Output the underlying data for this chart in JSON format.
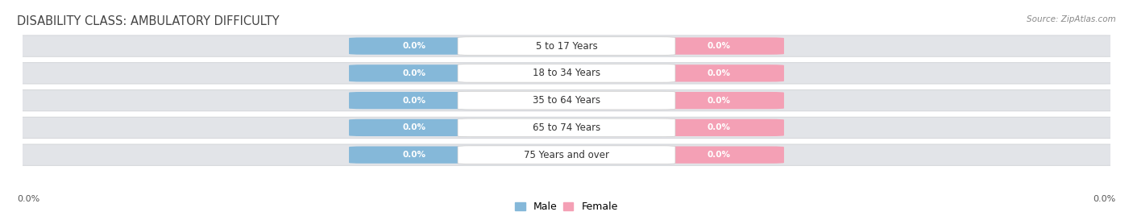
{
  "title": "DISABILITY CLASS: AMBULATORY DIFFICULTY",
  "source_text": "Source: ZipAtlas.com",
  "categories": [
    "5 to 17 Years",
    "18 to 34 Years",
    "35 to 64 Years",
    "65 to 74 Years",
    "75 Years and over"
  ],
  "male_values": [
    0.0,
    0.0,
    0.0,
    0.0,
    0.0
  ],
  "female_values": [
    0.0,
    0.0,
    0.0,
    0.0,
    0.0
  ],
  "male_color": "#85b8d9",
  "female_color": "#f4a0b5",
  "title_color": "#444444",
  "title_fontsize": 10.5,
  "label_fontsize": 8.5,
  "value_fontsize": 7.5,
  "background_color": "#ffffff",
  "legend_male": "Male",
  "legend_female": "Female",
  "row_color": "#e2e4e8",
  "row_edge_color": "#d0d2d6"
}
